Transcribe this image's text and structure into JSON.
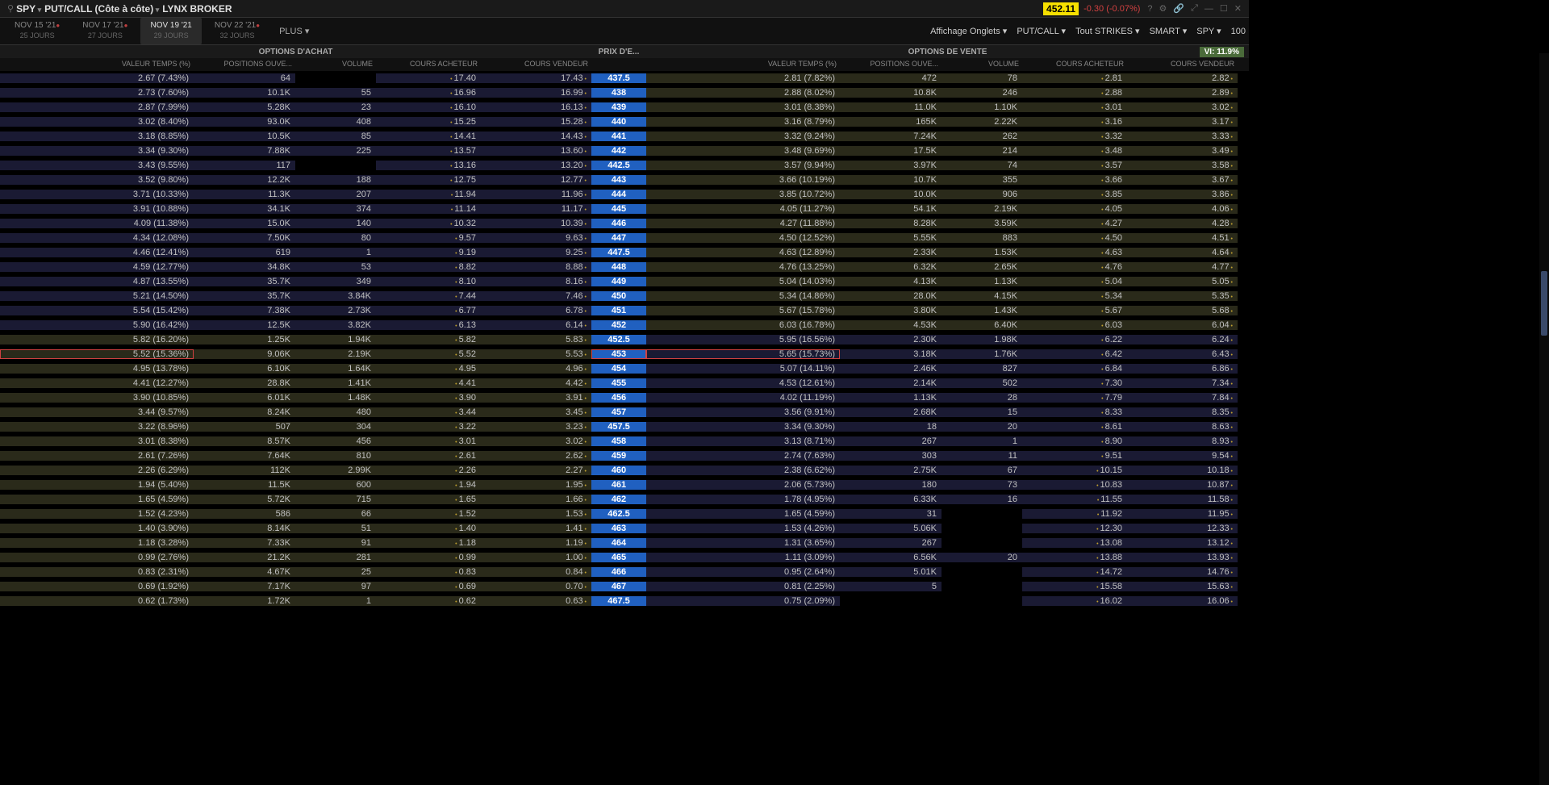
{
  "top": {
    "symbol": "SPY",
    "type": "PUT/CALL (Côte à côte)",
    "broker": "LYNX BROKER",
    "price": "452.11",
    "change": "-0.30 (-0.07%)"
  },
  "tabs": [
    {
      "d": "NOV 15 '21",
      "sub": "25 JOURS",
      "dot": true
    },
    {
      "d": "NOV 17 '21",
      "sub": "27 JOURS",
      "dot": true
    },
    {
      "d": "NOV 19 '21",
      "sub": "29 JOURS",
      "dot": false,
      "active": true
    },
    {
      "d": "NOV 22 '21",
      "sub": "32 JOURS",
      "dot": true
    }
  ],
  "plus": "PLUS ▾",
  "controls": [
    "Affichage Onglets ▾",
    "PUT/CALL ▾",
    "Tout STRIKES ▾",
    "SMART ▾",
    "SPY ▾",
    "100"
  ],
  "sections": {
    "call": "OPTIONS D'ACHAT",
    "strike": "PRIX D'E...",
    "put": "OPTIONS DE VENTE",
    "vi": "VI: 11.9%"
  },
  "cols": [
    "VALEUR TEMPS (%)",
    "POSITIONS OUVE...",
    "VOLUME",
    "COURS ACHETEUR",
    "COURS VENDEUR"
  ],
  "atm_strike": 452.5,
  "hl_strike": 453,
  "rows": [
    {
      "s": "437.5",
      "c": [
        "2.67 (7.43%)",
        "64",
        "",
        "17.40",
        "17.43"
      ],
      "p": [
        "2.81 (7.82%)",
        "472",
        "78",
        "2.81",
        "2.82"
      ]
    },
    {
      "s": "438",
      "c": [
        "2.73 (7.60%)",
        "10.1K",
        "55",
        "16.96",
        "16.99"
      ],
      "p": [
        "2.88 (8.02%)",
        "10.8K",
        "246",
        "2.88",
        "2.89"
      ]
    },
    {
      "s": "439",
      "c": [
        "2.87 (7.99%)",
        "5.28K",
        "23",
        "16.10",
        "16.13"
      ],
      "p": [
        "3.01 (8.38%)",
        "11.0K",
        "1.10K",
        "3.01",
        "3.02"
      ]
    },
    {
      "s": "440",
      "c": [
        "3.02 (8.40%)",
        "93.0K",
        "408",
        "15.25",
        "15.28"
      ],
      "p": [
        "3.16 (8.79%)",
        "165K",
        "2.22K",
        "3.16",
        "3.17"
      ]
    },
    {
      "s": "441",
      "c": [
        "3.18 (8.85%)",
        "10.5K",
        "85",
        "14.41",
        "14.43"
      ],
      "p": [
        "3.32 (9.24%)",
        "7.24K",
        "262",
        "3.32",
        "3.33"
      ]
    },
    {
      "s": "442",
      "c": [
        "3.34 (9.30%)",
        "7.88K",
        "225",
        "13.57",
        "13.60"
      ],
      "p": [
        "3.48 (9.69%)",
        "17.5K",
        "214",
        "3.48",
        "3.49"
      ]
    },
    {
      "s": "442.5",
      "c": [
        "3.43 (9.55%)",
        "117",
        "",
        "13.16",
        "13.20"
      ],
      "p": [
        "3.57 (9.94%)",
        "3.97K",
        "74",
        "3.57",
        "3.58"
      ]
    },
    {
      "s": "443",
      "c": [
        "3.52 (9.80%)",
        "12.2K",
        "188",
        "12.75",
        "12.77"
      ],
      "p": [
        "3.66 (10.19%)",
        "10.7K",
        "355",
        "3.66",
        "3.67"
      ]
    },
    {
      "s": "444",
      "c": [
        "3.71 (10.33%)",
        "11.3K",
        "207",
        "11.94",
        "11.96"
      ],
      "p": [
        "3.85 (10.72%)",
        "10.0K",
        "906",
        "3.85",
        "3.86"
      ]
    },
    {
      "s": "445",
      "c": [
        "3.91 (10.88%)",
        "34.1K",
        "374",
        "11.14",
        "11.17"
      ],
      "p": [
        "4.05 (11.27%)",
        "54.1K",
        "2.19K",
        "4.05",
        "4.06"
      ]
    },
    {
      "s": "446",
      "c": [
        "4.09 (11.38%)",
        "15.0K",
        "140",
        "10.32",
        "10.39"
      ],
      "p": [
        "4.27 (11.88%)",
        "8.28K",
        "3.59K",
        "4.27",
        "4.28"
      ]
    },
    {
      "s": "447",
      "c": [
        "4.34 (12.08%)",
        "7.50K",
        "80",
        "9.57",
        "9.63"
      ],
      "p": [
        "4.50 (12.52%)",
        "5.55K",
        "883",
        "4.50",
        "4.51"
      ]
    },
    {
      "s": "447.5",
      "c": [
        "4.46 (12.41%)",
        "619",
        "1",
        "9.19",
        "9.25"
      ],
      "p": [
        "4.63 (12.89%)",
        "2.33K",
        "1.53K",
        "4.63",
        "4.64"
      ]
    },
    {
      "s": "448",
      "c": [
        "4.59 (12.77%)",
        "34.8K",
        "53",
        "8.82",
        "8.88"
      ],
      "p": [
        "4.76 (13.25%)",
        "6.32K",
        "2.65K",
        "4.76",
        "4.77"
      ]
    },
    {
      "s": "449",
      "c": [
        "4.87 (13.55%)",
        "35.7K",
        "349",
        "8.10",
        "8.16"
      ],
      "p": [
        "5.04 (14.03%)",
        "4.13K",
        "1.13K",
        "5.04",
        "5.05"
      ]
    },
    {
      "s": "450",
      "c": [
        "5.21 (14.50%)",
        "35.7K",
        "3.84K",
        "7.44",
        "7.46"
      ],
      "p": [
        "5.34 (14.86%)",
        "28.0K",
        "4.15K",
        "5.34",
        "5.35"
      ]
    },
    {
      "s": "451",
      "c": [
        "5.54 (15.42%)",
        "7.38K",
        "2.73K",
        "6.77",
        "6.78"
      ],
      "p": [
        "5.67 (15.78%)",
        "3.80K",
        "1.43K",
        "5.67",
        "5.68"
      ]
    },
    {
      "s": "452",
      "c": [
        "5.90 (16.42%)",
        "12.5K",
        "3.82K",
        "6.13",
        "6.14"
      ],
      "p": [
        "6.03 (16.78%)",
        "4.53K",
        "6.40K",
        "6.03",
        "6.04"
      ]
    },
    {
      "s": "452.5",
      "c": [
        "5.82 (16.20%)",
        "1.25K",
        "1.94K",
        "5.82",
        "5.83"
      ],
      "p": [
        "5.95 (16.56%)",
        "2.30K",
        "1.98K",
        "6.22",
        "6.24"
      ]
    },
    {
      "s": "453",
      "c": [
        "5.52 (15.36%)",
        "9.06K",
        "2.19K",
        "5.52",
        "5.53"
      ],
      "p": [
        "5.65 (15.73%)",
        "3.18K",
        "1.76K",
        "6.42",
        "6.43"
      ]
    },
    {
      "s": "454",
      "c": [
        "4.95 (13.78%)",
        "6.10K",
        "1.64K",
        "4.95",
        "4.96"
      ],
      "p": [
        "5.07 (14.11%)",
        "2.46K",
        "827",
        "6.84",
        "6.86"
      ]
    },
    {
      "s": "455",
      "c": [
        "4.41 (12.27%)",
        "28.8K",
        "1.41K",
        "4.41",
        "4.42"
      ],
      "p": [
        "4.53 (12.61%)",
        "2.14K",
        "502",
        "7.30",
        "7.34"
      ]
    },
    {
      "s": "456",
      "c": [
        "3.90 (10.85%)",
        "6.01K",
        "1.48K",
        "3.90",
        "3.91"
      ],
      "p": [
        "4.02 (11.19%)",
        "1.13K",
        "28",
        "7.79",
        "7.84"
      ]
    },
    {
      "s": "457",
      "c": [
        "3.44 (9.57%)",
        "8.24K",
        "480",
        "3.44",
        "3.45"
      ],
      "p": [
        "3.56 (9.91%)",
        "2.68K",
        "15",
        "8.33",
        "8.35"
      ]
    },
    {
      "s": "457.5",
      "c": [
        "3.22 (8.96%)",
        "507",
        "304",
        "3.22",
        "3.23"
      ],
      "p": [
        "3.34 (9.30%)",
        "18",
        "20",
        "8.61",
        "8.63"
      ]
    },
    {
      "s": "458",
      "c": [
        "3.01 (8.38%)",
        "8.57K",
        "456",
        "3.01",
        "3.02"
      ],
      "p": [
        "3.13 (8.71%)",
        "267",
        "1",
        "8.90",
        "8.93"
      ]
    },
    {
      "s": "459",
      "c": [
        "2.61 (7.26%)",
        "7.64K",
        "810",
        "2.61",
        "2.62"
      ],
      "p": [
        "2.74 (7.63%)",
        "303",
        "11",
        "9.51",
        "9.54"
      ]
    },
    {
      "s": "460",
      "c": [
        "2.26 (6.29%)",
        "112K",
        "2.99K",
        "2.26",
        "2.27"
      ],
      "p": [
        "2.38 (6.62%)",
        "2.75K",
        "67",
        "10.15",
        "10.18"
      ]
    },
    {
      "s": "461",
      "c": [
        "1.94 (5.40%)",
        "11.5K",
        "600",
        "1.94",
        "1.95"
      ],
      "p": [
        "2.06 (5.73%)",
        "180",
        "73",
        "10.83",
        "10.87"
      ]
    },
    {
      "s": "462",
      "c": [
        "1.65 (4.59%)",
        "5.72K",
        "715",
        "1.65",
        "1.66"
      ],
      "p": [
        "1.78 (4.95%)",
        "6.33K",
        "16",
        "11.55",
        "11.58"
      ]
    },
    {
      "s": "462.5",
      "c": [
        "1.52 (4.23%)",
        "586",
        "66",
        "1.52",
        "1.53"
      ],
      "p": [
        "1.65 (4.59%)",
        "31",
        "",
        "11.92",
        "11.95"
      ]
    },
    {
      "s": "463",
      "c": [
        "1.40 (3.90%)",
        "8.14K",
        "51",
        "1.40",
        "1.41"
      ],
      "p": [
        "1.53 (4.26%)",
        "5.06K",
        "",
        "12.30",
        "12.33"
      ]
    },
    {
      "s": "464",
      "c": [
        "1.18 (3.28%)",
        "7.33K",
        "91",
        "1.18",
        "1.19"
      ],
      "p": [
        "1.31 (3.65%)",
        "267",
        "",
        "13.08",
        "13.12"
      ]
    },
    {
      "s": "465",
      "c": [
        "0.99 (2.76%)",
        "21.2K",
        "281",
        "0.99",
        "1.00"
      ],
      "p": [
        "1.11 (3.09%)",
        "6.56K",
        "20",
        "13.88",
        "13.93"
      ]
    },
    {
      "s": "466",
      "c": [
        "0.83 (2.31%)",
        "4.67K",
        "25",
        "0.83",
        "0.84"
      ],
      "p": [
        "0.95 (2.64%)",
        "5.01K",
        "",
        "14.72",
        "14.76"
      ]
    },
    {
      "s": "467",
      "c": [
        "0.69 (1.92%)",
        "7.17K",
        "97",
        "0.69",
        "0.70"
      ],
      "p": [
        "0.81 (2.25%)",
        "5",
        "",
        "15.58",
        "15.63"
      ]
    },
    {
      "s": "467.5",
      "c": [
        "0.62 (1.73%)",
        "1.72K",
        "1",
        "0.62",
        "0.63"
      ],
      "p": [
        "0.75 (2.09%)",
        "",
        "",
        "16.02",
        "16.06"
      ]
    }
  ]
}
